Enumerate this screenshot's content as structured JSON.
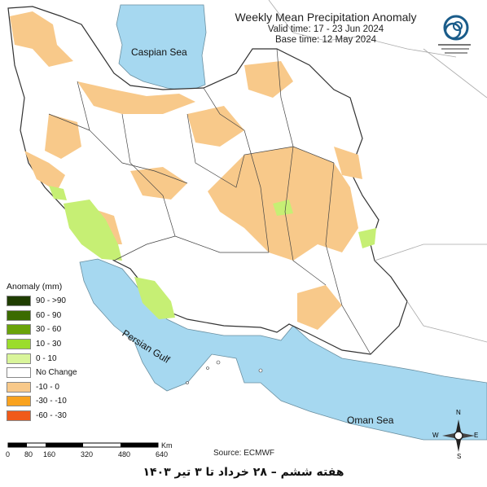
{
  "title": "Weekly Mean Precipitation Anomaly",
  "valid_time": "Valid time: 17 - 23 Jun 2024",
  "base_time": "Base time: 12 May 2024",
  "source": "Source: ECMWF",
  "caption_fa": "هفته ششم – ۲۸ خرداد تا ۳ تیر ۱۴۰۳",
  "labels": {
    "caspian": "Caspian Sea",
    "persian_gulf": "Persian Gulf",
    "oman_sea": "Oman Sea"
  },
  "compass": {
    "n": "N",
    "s": "S",
    "e": "E",
    "w": "W"
  },
  "legend": {
    "title": "Anomaly (mm)",
    "items": [
      {
        "label": "90 - >90",
        "color": "#1f3d00"
      },
      {
        "label": "60 - 90",
        "color": "#3b6b00"
      },
      {
        "label": "30 - 60",
        "color": "#6aa30a"
      },
      {
        "label": "10 - 30",
        "color": "#9bdc2c"
      },
      {
        "label": "0 - 10",
        "color": "#d9f59a"
      },
      {
        "label": "No Change",
        "color": "#ffffff"
      },
      {
        "label": "-10 - 0",
        "color": "#f8c98a"
      },
      {
        "label": "-30 - -10",
        "color": "#f9a21e"
      },
      {
        "label": "-60 - -30",
        "color": "#f05a1a"
      }
    ]
  },
  "scale_bar": {
    "unit": "Km",
    "ticks": [
      "0",
      "80",
      "160",
      "320",
      "480",
      "640"
    ]
  },
  "colors": {
    "water": "#a6d8f0",
    "land": "#ffffff",
    "border": "#555555",
    "dry": "#f8c98a",
    "wet": "#c6ef74"
  }
}
